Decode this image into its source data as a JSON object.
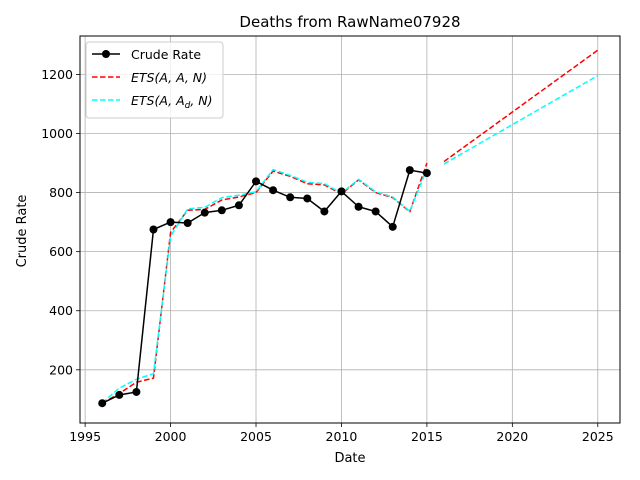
{
  "chart_data": {
    "type": "line",
    "title": "Deaths from RawName07928",
    "xlabel": "Date",
    "ylabel": "Crude Rate",
    "xlim": [
      1994.7,
      2026.3
    ],
    "ylim": [
      20,
      1330
    ],
    "xticks": [
      1995,
      2000,
      2005,
      2010,
      2015,
      2020,
      2025
    ],
    "yticks": [
      200,
      400,
      600,
      800,
      1000,
      1200
    ],
    "grid": true,
    "legend_position": "top-left",
    "legend": {
      "crude": "Crude Rate",
      "ets1_prefix": "ETS",
      "ets1_args": "(A, A, N)",
      "ets2_prefix": "ETS",
      "ets2_args_a": "(A, A",
      "ets2_args_sub": "d",
      "ets2_args_end": ", N)"
    },
    "series": [
      {
        "name": "Crude Rate",
        "color": "#000000",
        "style": "solid-marker",
        "x": [
          1996,
          1997,
          1998,
          1999,
          2000,
          2001,
          2002,
          2003,
          2004,
          2005,
          2006,
          2007,
          2008,
          2009,
          2010,
          2011,
          2012,
          2013,
          2014,
          2015
        ],
        "y": [
          87,
          115,
          125,
          675,
          700,
          697,
          732,
          740,
          757,
          838,
          808,
          784,
          780,
          736,
          804,
          752,
          736,
          684,
          876,
          866
        ]
      },
      {
        "name": "ETS(A, A, N)",
        "color": "#ff0000",
        "style": "dashed",
        "x": [
          1996,
          1997,
          1998,
          1999,
          2000,
          2001,
          2002,
          2003,
          2004,
          2005,
          2006,
          2007,
          2008,
          2009,
          2010,
          2011,
          2012,
          2013,
          2014,
          2015
        ],
        "y": [
          87,
          120,
          158,
          172,
          665,
          740,
          743,
          775,
          785,
          800,
          873,
          855,
          830,
          826,
          795,
          843,
          800,
          783,
          735,
          900
        ],
        "forecast_x": [
          2016,
          2025
        ],
        "forecast_y": [
          905,
          1282
        ]
      },
      {
        "name": "ETS(A, Ad, N)",
        "color": "#00ffff",
        "style": "dashed",
        "x": [
          1996,
          1997,
          1998,
          1999,
          2000,
          2001,
          2002,
          2003,
          2004,
          2005,
          2006,
          2007,
          2008,
          2009,
          2010,
          2011,
          2012,
          2013,
          2014,
          2015
        ],
        "y": [
          88,
          138,
          168,
          187,
          652,
          745,
          750,
          783,
          791,
          803,
          878,
          858,
          835,
          830,
          798,
          845,
          803,
          785,
          737,
          880
        ],
        "forecast_x": [
          2016,
          2025
        ],
        "forecast_y": [
          897,
          1196
        ]
      }
    ]
  },
  "colors": {
    "grid": "#b0b0b0",
    "axes": "#000000"
  }
}
